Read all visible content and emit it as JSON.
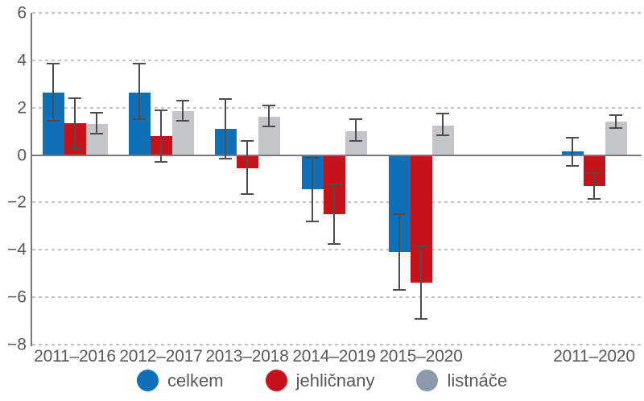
{
  "chart_data": {
    "type": "bar",
    "title": "",
    "xlabel": "",
    "ylabel": "",
    "categories": [
      "2011–2016",
      "2012–2017",
      "2013–2018",
      "2014–2019",
      "2015–2020",
      "2011–2020"
    ],
    "series": [
      {
        "name": "celkem",
        "color": "#0f70b7",
        "values": [
          2.65,
          2.65,
          1.1,
          -1.45,
          -4.1,
          0.15
        ],
        "error_low": [
          1.45,
          1.5,
          -0.15,
          -2.8,
          -5.7,
          -0.45
        ],
        "error_high": [
          3.85,
          3.85,
          2.35,
          -0.1,
          -2.5,
          0.75
        ]
      },
      {
        "name": "jehličnany",
        "color": "#c5121b",
        "values": [
          1.35,
          0.8,
          -0.55,
          -2.5,
          -5.4,
          -1.3
        ],
        "error_low": [
          0.3,
          -0.3,
          -1.65,
          -3.75,
          -6.9,
          -1.85
        ],
        "error_high": [
          2.4,
          1.9,
          0.6,
          -1.25,
          -3.85,
          -0.75
        ]
      },
      {
        "name": "listnáče",
        "color": "#c3c5c8",
        "values": [
          1.3,
          1.85,
          1.6,
          1.0,
          1.25,
          1.4
        ],
        "error_low": [
          0.9,
          1.45,
          1.2,
          0.6,
          0.85,
          1.15
        ],
        "error_high": [
          1.8,
          2.3,
          2.1,
          1.5,
          1.75,
          1.7
        ]
      }
    ],
    "ylim": [
      -8,
      6
    ],
    "yticks": [
      6,
      4,
      2,
      0,
      -2,
      -4,
      -6,
      -8
    ],
    "ytick_labels": [
      "6",
      "4",
      "2",
      "0",
      "−2",
      "−4",
      "−6",
      "−8"
    ],
    "error_bars": true,
    "grid": "horizontal-dashed",
    "legend_position": "bottom",
    "gap_before_last_group": true
  },
  "legend": {
    "items": [
      {
        "label": "celkem",
        "color": "#0f70b7"
      },
      {
        "label": "jehličnany",
        "color": "#c5121b"
      },
      {
        "label": "listnáče",
        "color": "#8c99ad"
      }
    ]
  },
  "colors": {
    "grid": "#c4c4c4",
    "axis": "#7a7a7a",
    "error_bar": "#4d4d4d",
    "text": "#595959",
    "background": "#ffffff"
  }
}
